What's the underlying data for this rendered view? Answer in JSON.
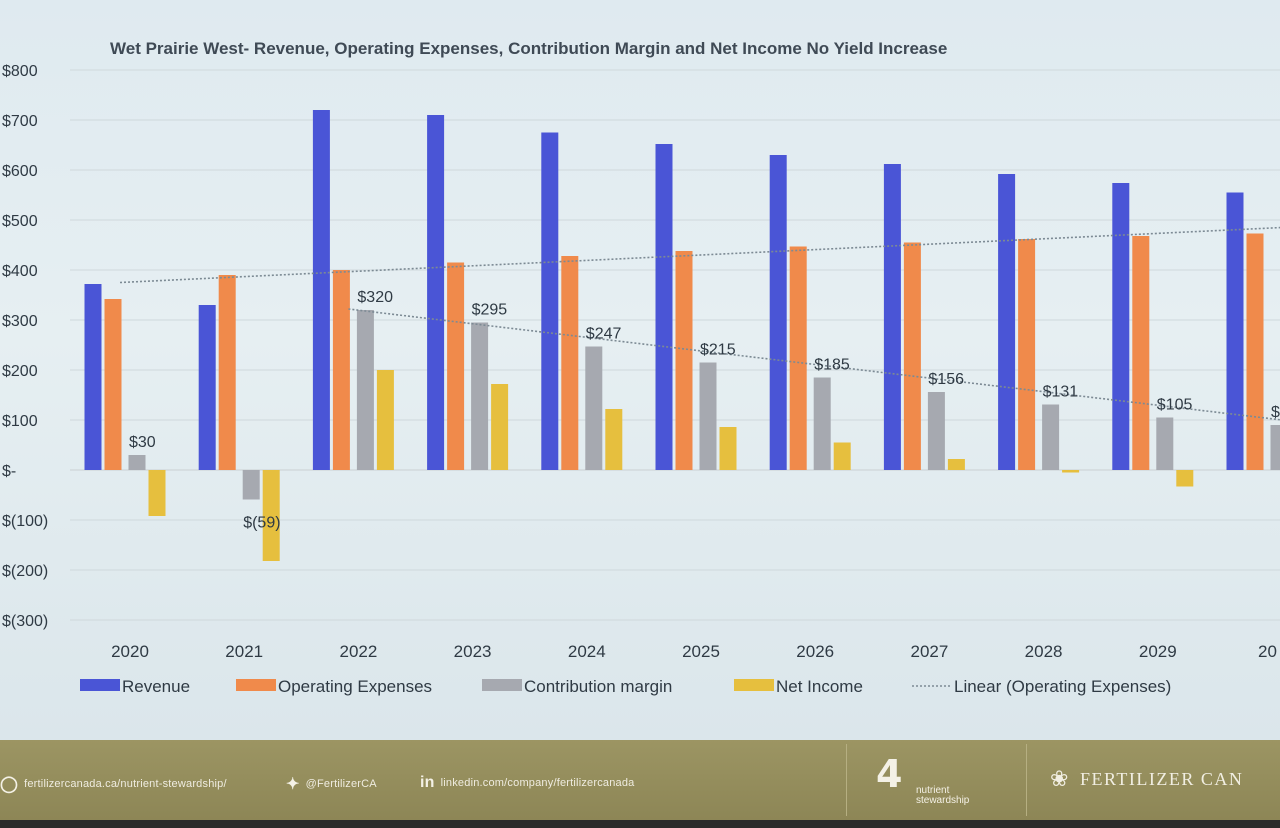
{
  "chart_data": {
    "type": "bar",
    "title": "Wet Prairie West- Revenue, Operating Expenses, Contribution Margin and Net Income No Yield Increase",
    "categories": [
      "2020",
      "2021",
      "2022",
      "2023",
      "2024",
      "2025",
      "2026",
      "2027",
      "2028",
      "2029",
      "20"
    ],
    "series": [
      {
        "name": "Revenue",
        "color": "#4a55d6",
        "values": [
          372,
          330,
          720,
          710,
          675,
          652,
          630,
          612,
          592,
          574,
          555
        ]
      },
      {
        "name": "Operating Expenses",
        "color": "#f08a4b",
        "values": [
          342,
          390,
          400,
          415,
          428,
          438,
          447,
          455,
          462,
          468,
          473
        ]
      },
      {
        "name": "Contribution margin",
        "color": "#a6a9b0",
        "values": [
          30,
          -59,
          320,
          295,
          247,
          215,
          185,
          156,
          131,
          105,
          90
        ]
      },
      {
        "name": "Net Income",
        "color": "#e6bf3e",
        "values": [
          -92,
          -182,
          200,
          172,
          122,
          86,
          55,
          22,
          -5,
          -33,
          null
        ]
      }
    ],
    "data_labels": [
      "$30",
      "$(59)",
      "$320",
      "$295",
      "$247",
      "$215",
      "$185",
      "$156",
      "$131",
      "$105",
      "$"
    ],
    "trendlines": [
      {
        "name": "Linear (Operating Expenses)",
        "from": [
          0,
          375
        ],
        "to": [
          10,
          485
        ],
        "color": "#7c8a94"
      },
      {
        "from": [
          2,
          322
        ],
        "to": [
          10,
          100
        ],
        "color": "#7c8a94"
      }
    ],
    "ylim": [
      -300,
      800
    ],
    "yticks": [
      800,
      700,
      600,
      500,
      400,
      300,
      200,
      100,
      0,
      -100,
      -200,
      -300
    ],
    "ytick_labels": [
      "$800",
      "$700",
      "$600",
      "$500",
      "$400",
      "$300",
      "$200",
      "$100",
      "$-",
      "$(100)",
      "$(200)",
      "$(300)"
    ],
    "legend": [
      {
        "label": "Revenue",
        "color": "#4a55d6",
        "kind": "box"
      },
      {
        "label": "Operating Expenses",
        "color": "#f08a4b",
        "kind": "box"
      },
      {
        "label": "Contribution margin",
        "color": "#a6a9b0",
        "kind": "box"
      },
      {
        "label": "Net Income",
        "color": "#e6bf3e",
        "kind": "box"
      },
      {
        "label": "Linear (Operating Expenses)",
        "color": "#7c8a94",
        "kind": "dotted"
      }
    ],
    "legend_position": "bottom",
    "grid": true,
    "xlabel": "",
    "ylabel": ""
  },
  "footer": {
    "website": "fertilizercanada.ca/nutrient-stewardship/",
    "twitter": "@FertilizerCA",
    "linkedin": "linkedin.com/company/fertilizercanada",
    "logo4_big": "4",
    "logo4_line1": "nutrient",
    "logo4_line2": "stewardship",
    "brand": "Fertilizer Can",
    "icons": {
      "website": "globe-icon",
      "twitter": "twitter-icon",
      "linkedin": "linkedin-icon"
    }
  }
}
